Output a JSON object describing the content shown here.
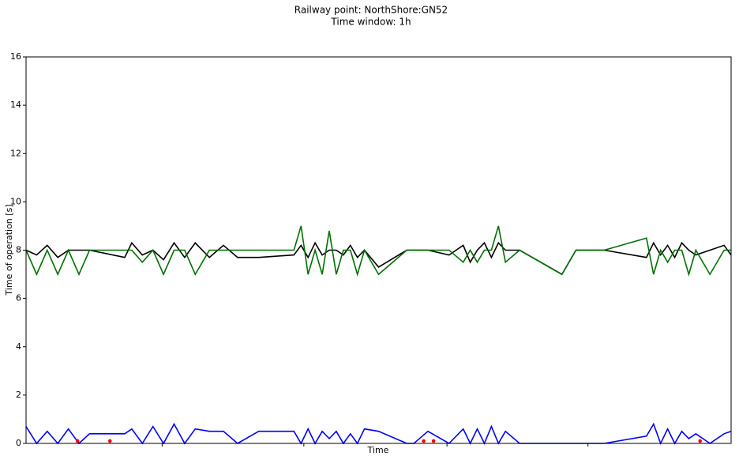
{
  "chart_data": {
    "type": "line",
    "title": [
      "Railway point: NorthShore:GN52",
      "Time window: 1h"
    ],
    "xlabel": "Time",
    "ylabel": "Time of operation [s]",
    "xlim": [
      0,
      100
    ],
    "xticks": [
      19.3,
      39.4,
      59.7,
      79.7
    ],
    "ylim": [
      0,
      16
    ],
    "yticks": [
      0,
      2,
      4,
      6,
      8,
      10,
      12,
      14,
      16
    ],
    "x": [
      0,
      1.5,
      3,
      4.5,
      6,
      7.5,
      9,
      14,
      15,
      16.5,
      18,
      19.5,
      21,
      22.5,
      24,
      26,
      28,
      30,
      33,
      38,
      39,
      40,
      41,
      42,
      43,
      44,
      45,
      46,
      47,
      48,
      50,
      54,
      55,
      57,
      60,
      62,
      63,
      64,
      65,
      66,
      67,
      68,
      70,
      76,
      78,
      82,
      88,
      89,
      90,
      91,
      92,
      93,
      94,
      95,
      97,
      99,
      100
    ],
    "series": [
      {
        "color": "#000000",
        "values": [
          8,
          7.8,
          8.2,
          7.7,
          8,
          8,
          8,
          7.7,
          8.3,
          7.8,
          8,
          7.6,
          8.3,
          7.7,
          8.3,
          7.7,
          8.2,
          7.7,
          7.7,
          7.8,
          8.2,
          7.7,
          8.3,
          7.8,
          8,
          8,
          7.8,
          8.2,
          7.7,
          8,
          7.3,
          8,
          8,
          8,
          7.8,
          8.2,
          7.5,
          8,
          8.3,
          7.7,
          8.3,
          8,
          8,
          7,
          8,
          8,
          7.7,
          8.3,
          7.8,
          8.2,
          7.7,
          8.3,
          8,
          7.8,
          8,
          8.2,
          7.8
        ]
      },
      {
        "color": "#007000",
        "values": [
          8,
          7,
          8,
          7,
          8,
          7,
          8,
          8,
          8,
          7.5,
          8,
          7,
          8,
          8,
          7,
          8,
          8,
          8,
          8,
          8,
          9,
          7,
          8,
          7,
          8.8,
          7,
          8,
          8,
          7,
          8,
          7,
          8,
          8,
          8,
          8,
          7.5,
          8,
          7.5,
          8,
          8,
          9,
          7.5,
          8,
          7,
          8,
          8,
          8.5,
          7,
          8,
          7.5,
          8,
          8,
          7,
          8,
          7,
          8,
          8
        ]
      },
      {
        "color": "#0000ff",
        "values": [
          0.7,
          0,
          0.5,
          0,
          0.6,
          0,
          0.4,
          0.4,
          0.6,
          0,
          0.7,
          0,
          0.8,
          0,
          0.6,
          0.5,
          0.5,
          0,
          0.5,
          0.5,
          0,
          0.6,
          0,
          0.5,
          0.2,
          0.5,
          0,
          0.4,
          0,
          0.6,
          0.5,
          0,
          0,
          0.5,
          0,
          0.6,
          0,
          0.6,
          0,
          0.7,
          0,
          0.5,
          0,
          0,
          0,
          0,
          0.3,
          0.8,
          0,
          0.6,
          0,
          0.5,
          0.2,
          0.4,
          0,
          0.4,
          0.5
        ]
      }
    ],
    "points": {
      "color": "#ff0000",
      "x": [
        7.3,
        11.9,
        56.4,
        57.8,
        95.6
      ],
      "values": [
        0.1,
        0.1,
        0.1,
        0.1,
        0.1
      ]
    }
  }
}
